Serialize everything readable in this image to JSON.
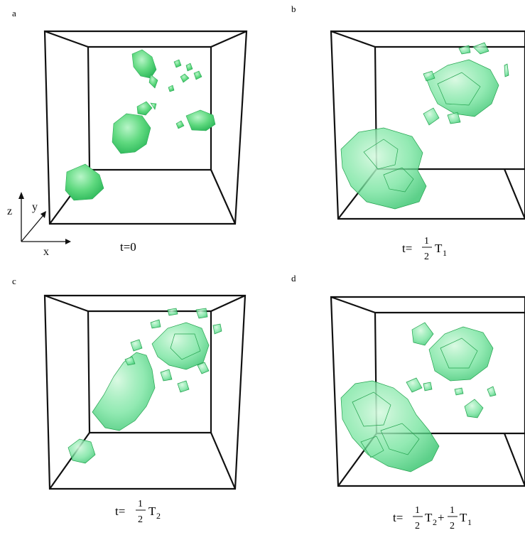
{
  "figure": {
    "panels": [
      {
        "letter": "a",
        "caption": {
          "prefix": "t=0",
          "terms": []
        }
      },
      {
        "letter": "b",
        "caption": {
          "prefix": "t=",
          "terms": [
            {
              "num": "1",
              "den": "2",
              "sym": "T",
              "sub": "1"
            }
          ]
        }
      },
      {
        "letter": "c",
        "caption": {
          "prefix": "t=",
          "terms": [
            {
              "num": "1",
              "den": "2",
              "sym": "T",
              "sub": "2"
            }
          ]
        }
      },
      {
        "letter": "d",
        "caption": {
          "prefix": "t=",
          "terms": [
            {
              "num": "1",
              "den": "2",
              "sym": "T",
              "sub": "2"
            },
            {
              "num": "1",
              "den": "2",
              "sym": "T",
              "sub": "1"
            }
          ],
          "joiner": "+"
        }
      }
    ],
    "axes_labels": {
      "x": "x",
      "y": "y",
      "z": "z"
    },
    "colors": {
      "iso_fill": "#4fdc7a",
      "iso_edge": "#1fa84a",
      "box_edge": "#111111"
    }
  }
}
